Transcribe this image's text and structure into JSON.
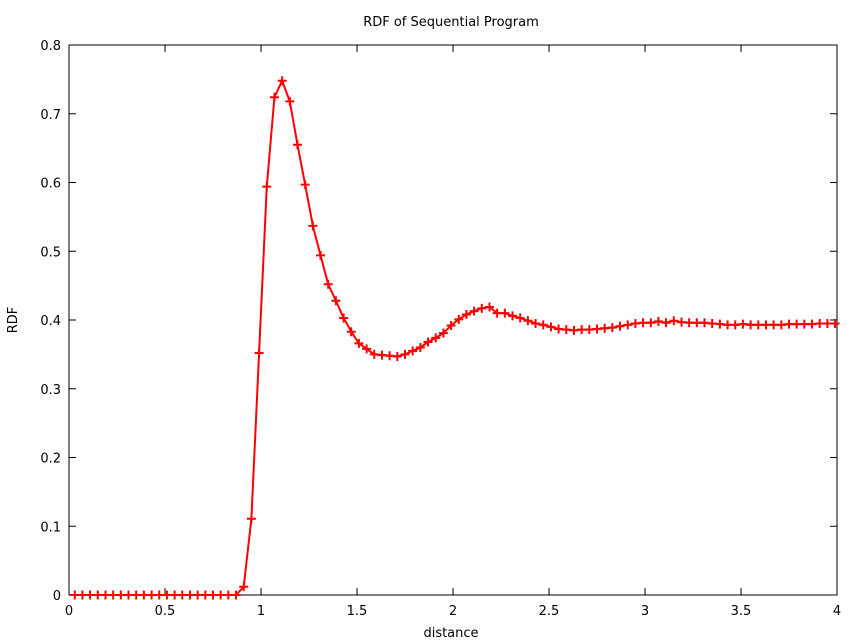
{
  "chart_data": {
    "type": "line",
    "title": "RDF of Sequential Program",
    "xlabel": "distance",
    "ylabel": "RDF",
    "xlim": [
      0,
      4
    ],
    "ylim": [
      0,
      0.8
    ],
    "xticks": [
      0,
      0.5,
      1,
      1.5,
      2,
      2.5,
      3,
      3.5,
      4
    ],
    "xtick_labels": [
      "0",
      "0.5",
      "1",
      "1.5",
      "2",
      "2.5",
      "3",
      "3.5",
      "4"
    ],
    "yticks": [
      0,
      0.1,
      0.2,
      0.3,
      0.4,
      0.5,
      0.6,
      0.7,
      0.8
    ],
    "ytick_labels": [
      "0",
      "0.1",
      "0.2",
      "0.3",
      "0.4",
      "0.5",
      "0.6",
      "0.7",
      "0.8"
    ],
    "grid": false,
    "marker": "plus",
    "line_color": "#ff0000",
    "series": [
      {
        "x": [
          0.03,
          0.07,
          0.11,
          0.15,
          0.19,
          0.23,
          0.27,
          0.31,
          0.35,
          0.39,
          0.43,
          0.47,
          0.51,
          0.55,
          0.59,
          0.63,
          0.67,
          0.71,
          0.75,
          0.79,
          0.83,
          0.87,
          0.91,
          0.95,
          0.99,
          1.03,
          1.07,
          1.11,
          1.15,
          1.19,
          1.23,
          1.27,
          1.31,
          1.35,
          1.39,
          1.43,
          1.47,
          1.51,
          1.55,
          1.59,
          1.63,
          1.67,
          1.71,
          1.75,
          1.79,
          1.83,
          1.87,
          1.91,
          1.95,
          1.99,
          2.03,
          2.07,
          2.11,
          2.15,
          2.19,
          2.23,
          2.27,
          2.31,
          2.35,
          2.39,
          2.43,
          2.47,
          2.51,
          2.55,
          2.59,
          2.63,
          2.67,
          2.71,
          2.75,
          2.79,
          2.83,
          2.87,
          2.91,
          2.95,
          2.99,
          3.03,
          3.07,
          3.11,
          3.15,
          3.19,
          3.23,
          3.27,
          3.31,
          3.35,
          3.39,
          3.43,
          3.47,
          3.51,
          3.55,
          3.59,
          3.63,
          3.67,
          3.71,
          3.75,
          3.79,
          3.83,
          3.87,
          3.91,
          3.95,
          3.99
        ],
        "values": [
          0,
          0,
          0,
          0,
          0,
          0,
          0,
          0,
          0,
          0,
          0,
          0,
          0,
          0,
          0,
          0,
          0,
          0,
          0,
          0,
          0,
          0,
          0.012,
          0.111,
          0.352,
          0.594,
          0.724,
          0.748,
          0.718,
          0.655,
          0.597,
          0.537,
          0.494,
          0.452,
          0.428,
          0.403,
          0.383,
          0.366,
          0.358,
          0.35,
          0.349,
          0.348,
          0.347,
          0.35,
          0.355,
          0.36,
          0.368,
          0.374,
          0.381,
          0.392,
          0.401,
          0.408,
          0.413,
          0.417,
          0.419,
          0.41,
          0.41,
          0.406,
          0.403,
          0.399,
          0.395,
          0.393,
          0.39,
          0.387,
          0.386,
          0.385,
          0.386,
          0.386,
          0.387,
          0.388,
          0.389,
          0.391,
          0.393,
          0.395,
          0.396,
          0.396,
          0.398,
          0.396,
          0.399,
          0.397,
          0.396,
          0.396,
          0.396,
          0.395,
          0.394,
          0.393,
          0.393,
          0.394,
          0.393,
          0.393,
          0.393,
          0.393,
          0.393,
          0.394,
          0.394,
          0.394,
          0.394,
          0.395,
          0.395,
          0.395
        ]
      }
    ]
  }
}
